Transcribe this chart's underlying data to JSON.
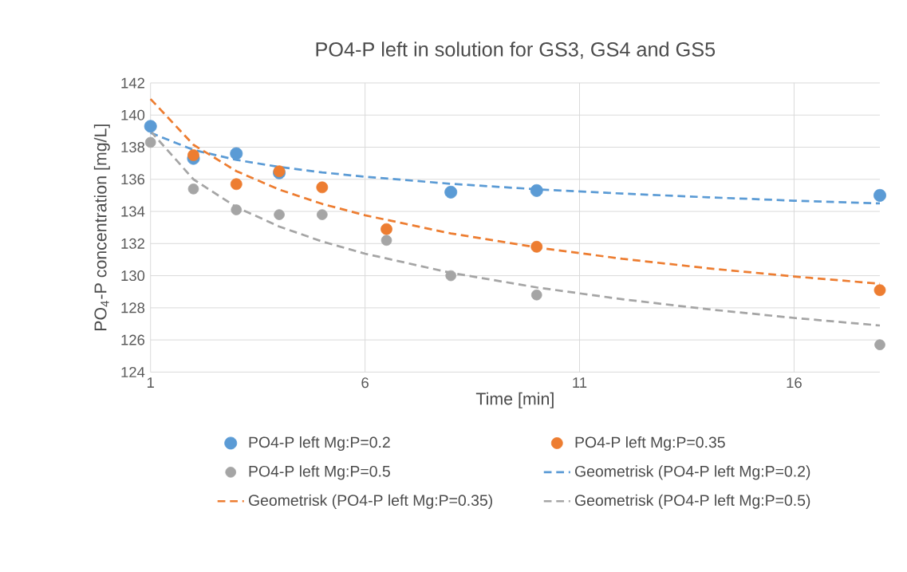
{
  "chart_data": {
    "type": "scatter",
    "title": "PO4-P left in solution for GS3, GS4 and GS5",
    "xlabel": "Time [min]",
    "ylabel": "PO$_{4}$-P concentration [mg/L]",
    "xlim": [
      1,
      18
    ],
    "xticks": [
      1,
      6,
      11,
      16
    ],
    "ylim": [
      124,
      142
    ],
    "yticks": [
      124,
      126,
      128,
      130,
      132,
      134,
      136,
      138,
      140,
      142
    ],
    "grid": true,
    "legend": "bottom",
    "series": [
      {
        "name": "PO4-P left Mg:P=0.2",
        "marker": "circle",
        "color": "#5b9bd5",
        "x": [
          1,
          2,
          3,
          4,
          8,
          10,
          18
        ],
        "values": [
          139.3,
          137.3,
          137.6,
          136.4,
          135.2,
          135.3,
          135.0
        ]
      },
      {
        "name": "PO4-P left Mg:P=0.35",
        "marker": "circle",
        "color": "#ed7d31",
        "x": [
          2,
          3,
          4,
          5,
          6.5,
          10,
          18
        ],
        "values": [
          137.5,
          135.7,
          136.5,
          135.5,
          132.9,
          131.8,
          129.1
        ]
      },
      {
        "name": "PO4-P left Mg:P=0.5",
        "marker": "circle",
        "color": "#a5a5a5",
        "x": [
          1,
          2,
          3,
          4,
          5,
          6.5,
          8,
          10,
          18
        ],
        "values": [
          138.3,
          135.4,
          134.1,
          133.8,
          133.8,
          132.2,
          130.0,
          128.8,
          125.7
        ]
      },
      {
        "name": "Geometrisk (PO4-P left Mg:P=0.2)",
        "type": "line",
        "line_style": "dashed",
        "color": "#5b9bd5",
        "x": [
          1,
          2,
          3,
          4,
          5,
          6,
          8,
          10,
          12,
          14,
          16,
          18
        ],
        "values": [
          138.9,
          137.83,
          137.21,
          136.77,
          136.43,
          136.16,
          135.72,
          135.38,
          135.11,
          134.88,
          134.67,
          134.5
        ]
      },
      {
        "name": "Geometrisk (PO4-P left Mg:P=0.35)",
        "type": "line",
        "line_style": "dashed",
        "color": "#ed7d31",
        "x": [
          1,
          2,
          3,
          4,
          5,
          6,
          8,
          10,
          12,
          14,
          16,
          18
        ],
        "values": [
          141.0,
          138.15,
          136.51,
          135.36,
          134.47,
          133.76,
          132.63,
          131.76,
          131.05,
          130.46,
          129.95,
          129.5
        ]
      },
      {
        "name": "Geometrisk (PO4-P left Mg:P=0.5)",
        "type": "line",
        "line_style": "dashed",
        "color": "#a5a5a5",
        "x": [
          1,
          2,
          3,
          4,
          5,
          6,
          8,
          10,
          12,
          14,
          16,
          18
        ],
        "values": [
          139.0,
          136.0,
          134.27,
          133.06,
          132.13,
          131.37,
          130.18,
          129.27,
          128.53,
          127.91,
          127.37,
          126.9
        ]
      }
    ]
  }
}
